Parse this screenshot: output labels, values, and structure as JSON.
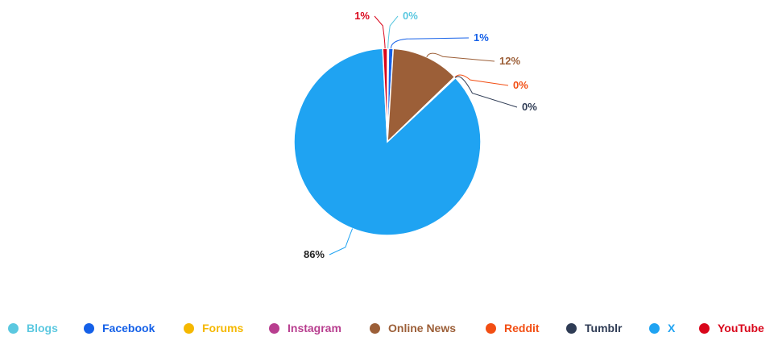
{
  "chart_data": {
    "type": "pie",
    "categories": [
      "Blogs",
      "Facebook",
      "Forums",
      "Instagram",
      "Online News",
      "Reddit",
      "Tumblr",
      "X",
      "YouTube"
    ],
    "values": [
      0.2,
      0.8,
      0,
      0,
      11.8,
      0.1,
      0.1,
      86.2,
      0.8
    ],
    "value_labels": [
      "0%",
      "1%",
      "",
      "",
      "12%",
      "0%",
      "0%",
      "86%",
      "1%"
    ],
    "colors": [
      "#5bc8e0",
      "#1460e8",
      "#f5b800",
      "#b83e8f",
      "#9c5f38",
      "#f24e13",
      "#2f3c55",
      "#1fa3f2",
      "#d9061b"
    ],
    "legend_position": "bottom",
    "title": ""
  }
}
